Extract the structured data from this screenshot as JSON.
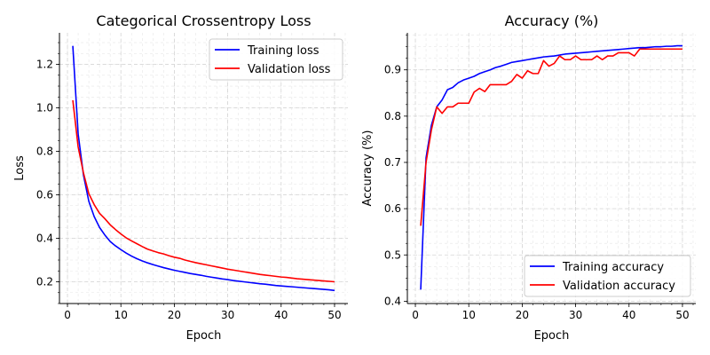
{
  "chart_data": [
    {
      "type": "line",
      "title": "Categorical Crossentropy Loss",
      "xlabel": "Epoch",
      "ylabel": "Loss",
      "xlim": [
        -1.5,
        52.5
      ],
      "ylim": [
        0.1,
        1.345
      ],
      "xticks": [
        0,
        10,
        20,
        30,
        40,
        50
      ],
      "yticks": [
        0.2,
        0.4,
        0.6,
        0.8,
        1.0,
        1.2
      ],
      "ytick_labels": [
        "0.2",
        "0.4",
        "0.6",
        "0.8",
        "1.0",
        "1.2"
      ],
      "grid": true,
      "legend_position": "upper right",
      "x": [
        1,
        2,
        3,
        4,
        5,
        6,
        7,
        8,
        9,
        10,
        11,
        12,
        13,
        14,
        15,
        16,
        17,
        18,
        19,
        20,
        21,
        22,
        23,
        24,
        25,
        26,
        27,
        28,
        29,
        30,
        31,
        32,
        33,
        34,
        35,
        36,
        37,
        38,
        39,
        40,
        41,
        42,
        43,
        44,
        45,
        46,
        47,
        48,
        49,
        50
      ],
      "series": [
        {
          "name": "Training loss",
          "color": "#0000ff",
          "values": [
            1.285,
            0.88,
            0.69,
            0.57,
            0.5,
            0.45,
            0.415,
            0.385,
            0.365,
            0.348,
            0.332,
            0.318,
            0.306,
            0.296,
            0.287,
            0.279,
            0.272,
            0.265,
            0.259,
            0.253,
            0.248,
            0.243,
            0.238,
            0.234,
            0.23,
            0.225,
            0.221,
            0.217,
            0.213,
            0.21,
            0.206,
            0.203,
            0.2,
            0.197,
            0.194,
            0.191,
            0.189,
            0.186,
            0.183,
            0.181,
            0.179,
            0.177,
            0.175,
            0.173,
            0.171,
            0.169,
            0.167,
            0.165,
            0.163,
            0.16
          ]
        },
        {
          "name": "Validation loss",
          "color": "#ff0000",
          "values": [
            1.035,
            0.82,
            0.7,
            0.605,
            0.555,
            0.515,
            0.49,
            0.462,
            0.44,
            0.42,
            0.402,
            0.388,
            0.375,
            0.362,
            0.35,
            0.342,
            0.334,
            0.328,
            0.32,
            0.313,
            0.308,
            0.3,
            0.294,
            0.288,
            0.283,
            0.278,
            0.273,
            0.268,
            0.263,
            0.258,
            0.254,
            0.25,
            0.246,
            0.242,
            0.238,
            0.234,
            0.231,
            0.228,
            0.225,
            0.222,
            0.22,
            0.217,
            0.214,
            0.212,
            0.21,
            0.208,
            0.206,
            0.204,
            0.202,
            0.2
          ]
        }
      ]
    },
    {
      "type": "line",
      "title": "Accuracy (%)",
      "xlabel": "Epoch",
      "ylabel": "Accuracy (%)",
      "xlim": [
        -1.5,
        52.5
      ],
      "ylim": [
        0.395,
        0.98
      ],
      "xticks": [
        0,
        10,
        20,
        30,
        40,
        50
      ],
      "yticks": [
        0.4,
        0.5,
        0.6,
        0.7,
        0.8,
        0.9
      ],
      "ytick_labels": [
        "0.4",
        "0.5",
        "0.6",
        "0.7",
        "0.8",
        "0.9"
      ],
      "grid": true,
      "legend_position": "lower right",
      "x": [
        1,
        2,
        3,
        4,
        5,
        6,
        7,
        8,
        9,
        10,
        11,
        12,
        13,
        14,
        15,
        16,
        17,
        18,
        19,
        20,
        21,
        22,
        23,
        24,
        25,
        26,
        27,
        28,
        29,
        30,
        31,
        32,
        33,
        34,
        35,
        36,
        37,
        38,
        39,
        40,
        41,
        42,
        43,
        44,
        45,
        46,
        47,
        48,
        49,
        50
      ],
      "series": [
        {
          "name": "Training accuracy",
          "color": "#0000ff",
          "values": [
            0.425,
            0.71,
            0.78,
            0.82,
            0.835,
            0.857,
            0.862,
            0.872,
            0.878,
            0.882,
            0.886,
            0.892,
            0.896,
            0.9,
            0.905,
            0.908,
            0.912,
            0.916,
            0.918,
            0.92,
            0.922,
            0.924,
            0.926,
            0.928,
            0.929,
            0.93,
            0.932,
            0.934,
            0.935,
            0.936,
            0.937,
            0.938,
            0.939,
            0.94,
            0.941,
            0.942,
            0.943,
            0.944,
            0.945,
            0.946,
            0.947,
            0.948,
            0.948,
            0.949,
            0.95,
            0.95,
            0.951,
            0.951,
            0.952,
            0.952
          ]
        },
        {
          "name": "Validation accuracy",
          "color": "#ff0000",
          "values": [
            0.563,
            0.7,
            0.77,
            0.82,
            0.806,
            0.82,
            0.82,
            0.828,
            0.828,
            0.828,
            0.852,
            0.86,
            0.853,
            0.868,
            0.868,
            0.868,
            0.868,
            0.875,
            0.89,
            0.882,
            0.898,
            0.892,
            0.892,
            0.92,
            0.908,
            0.914,
            0.93,
            0.922,
            0.922,
            0.93,
            0.922,
            0.922,
            0.922,
            0.93,
            0.922,
            0.93,
            0.93,
            0.937,
            0.937,
            0.937,
            0.93,
            0.945,
            0.945,
            0.945,
            0.945,
            0.945,
            0.945,
            0.945,
            0.945,
            0.945
          ]
        }
      ]
    }
  ]
}
